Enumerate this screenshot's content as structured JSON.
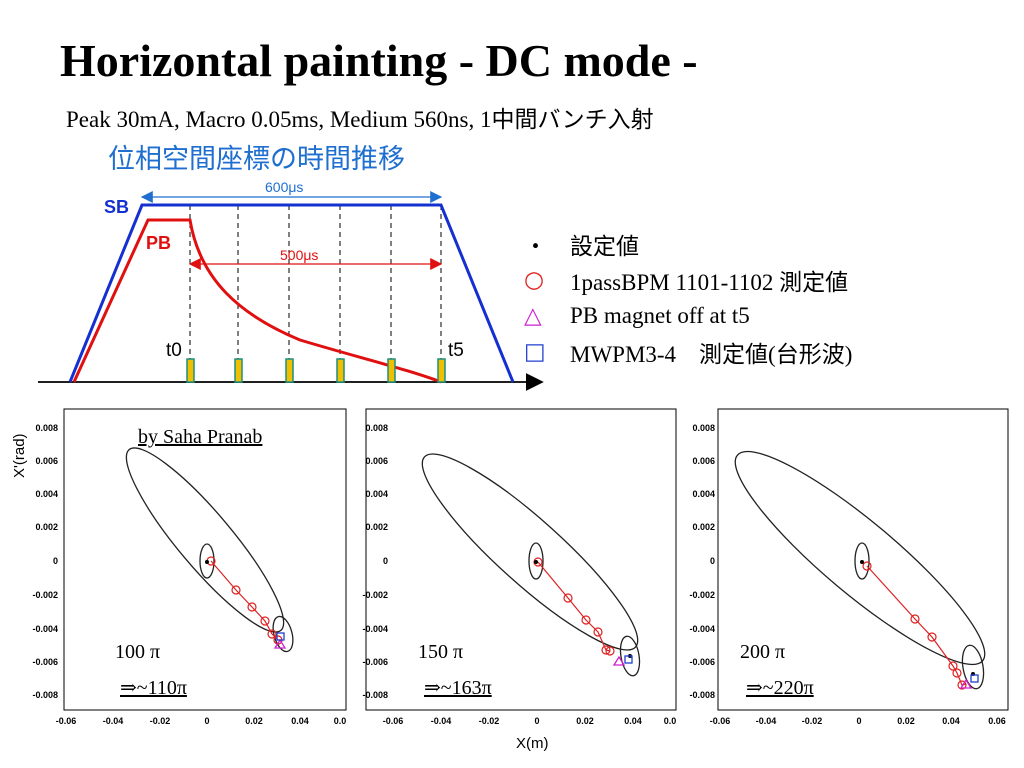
{
  "title": "Horizontal painting - DC mode -",
  "subtitle": "Peak 30mA, Macro 0.05ms, Medium 560ns, 1中間バンチ入射",
  "subtitle2": "位相空間座標の時間推移",
  "timing": {
    "sb_label": "SB",
    "pb_label": "PB",
    "sb_width_label": "600μs",
    "pb_width_label": "500μs",
    "t0_label": "t0",
    "t5_label": "t5"
  },
  "legend": [
    {
      "symbol": "・",
      "text": "設定値",
      "color": "#000000"
    },
    {
      "symbol": "○",
      "text": "1passBPM 1101-1102 測定値",
      "color": "#e02020"
    },
    {
      "symbol": "△",
      "text": "PB magnet off at t5",
      "color": "#d020d0"
    },
    {
      "symbol": "□",
      "text": "MWPM3-4　測定値(台形波)",
      "color": "#2040d0"
    }
  ],
  "panels": {
    "ylabel": "X'(rad)",
    "xlabel": "X(m)",
    "credit": "by Saha Pranab",
    "y_ticks": [
      "0.008",
      "0.006",
      "0.004",
      "0.002",
      "0",
      "-0.002",
      "-0.004",
      "-0.006",
      "-0.008"
    ],
    "x_ticks_1": [
      "-0.06",
      "-0.04",
      "-0.02",
      "0",
      "0.02",
      "0.04",
      "0.0"
    ],
    "x_ticks_2": [
      "-0.06",
      "-0.04",
      "-0.02",
      "0",
      "0.02",
      "0.04",
      "0.0"
    ],
    "x_ticks_3": [
      "-0.06",
      "-0.04",
      "-0.02",
      "0",
      "0.02",
      "0.04",
      "0.06"
    ],
    "p1_emit": "100 π",
    "p1_result": "⇒~110π",
    "p2_emit": "150 π",
    "p2_result": "⇒~163π",
    "p3_emit": "200 π",
    "p3_result": "⇒~220π"
  },
  "colors": {
    "sb": "#1530d0",
    "pb": "#e01010",
    "arrow": "#1f6fd0",
    "bpm": "#e02020",
    "pb_off": "#d020d0",
    "mwpm": "#2040d0",
    "pulse": "#f0c000",
    "pulse_edge": "#1a9080"
  }
}
